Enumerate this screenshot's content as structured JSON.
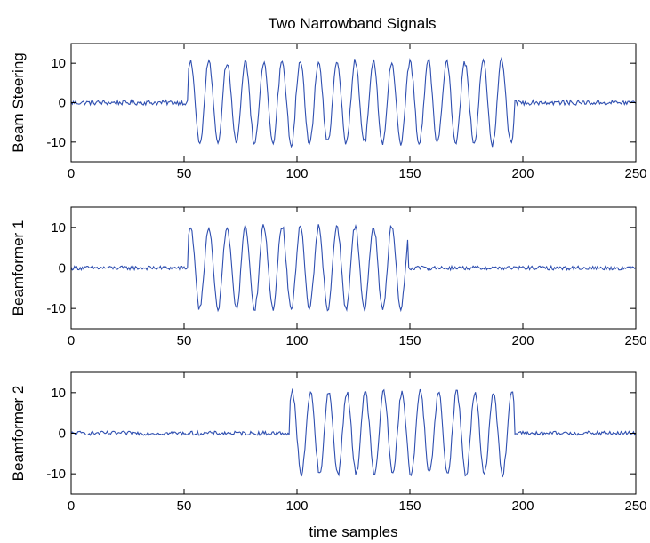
{
  "chart_data": [
    {
      "type": "line",
      "title": "Two Narrowband Signals",
      "xlabel": "",
      "ylabel": "Beam Steering",
      "xlim": [
        0,
        250
      ],
      "ylim": [
        -15,
        15
      ],
      "xticks": [
        0,
        50,
        100,
        150,
        200,
        250
      ],
      "yticks": [
        -10,
        0,
        10
      ],
      "series": [
        {
          "color": "#2f4fb0",
          "burst_start": 52,
          "burst_end": 196,
          "period": 8.1,
          "amplitude": 10.5,
          "noise": 0.6
        }
      ]
    },
    {
      "type": "line",
      "title": "",
      "xlabel": "",
      "ylabel": "Beamformer 1",
      "xlim": [
        0,
        250
      ],
      "ylim": [
        -15,
        15
      ],
      "xticks": [
        0,
        50,
        100,
        150,
        200,
        250
      ],
      "yticks": [
        -10,
        0,
        10
      ],
      "series": [
        {
          "color": "#2f4fb0",
          "burst_start": 52,
          "burst_end": 149,
          "period": 8.1,
          "amplitude": 10.2,
          "noise": 0.5
        }
      ]
    },
    {
      "type": "line",
      "title": "",
      "xlabel": "time samples",
      "ylabel": "Beamformer 2",
      "xlim": [
        0,
        250
      ],
      "ylim": [
        -15,
        15
      ],
      "xticks": [
        0,
        50,
        100,
        150,
        200,
        250
      ],
      "yticks": [
        -10,
        0,
        10
      ],
      "series": [
        {
          "color": "#2f4fb0",
          "burst_start": 97,
          "burst_end": 196,
          "period": 8.1,
          "amplitude": 10.2,
          "noise": 0.5
        }
      ]
    }
  ]
}
